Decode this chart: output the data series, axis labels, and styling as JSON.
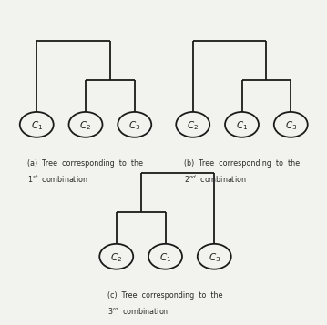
{
  "bg_color": "#f2f2ee",
  "line_color": "#1a1a1a",
  "ellipse_fc": "#f2f2ee",
  "ellipse_ec": "#1a1a1a",
  "line_width": 1.3,
  "trees": [
    {
      "caption": "(a)  Tree  corresponding  to  the\n$1^{st}$  combination",
      "structure": "left_single_right_pair",
      "nodes": [
        "C_1",
        "C_2",
        "C_3"
      ]
    },
    {
      "caption": "(b)  Tree  corresponding  to  the\n$2^{nd}$  combination",
      "structure": "left_single_right_pair",
      "nodes": [
        "C_2",
        "C_1",
        "C_3"
      ]
    },
    {
      "caption": "(c)  Tree  corresponding  to  the\n$3^{rd}$  combination",
      "structure": "left_pair_right_single",
      "nodes": [
        "C_2",
        "C_1",
        "C_3"
      ]
    }
  ]
}
